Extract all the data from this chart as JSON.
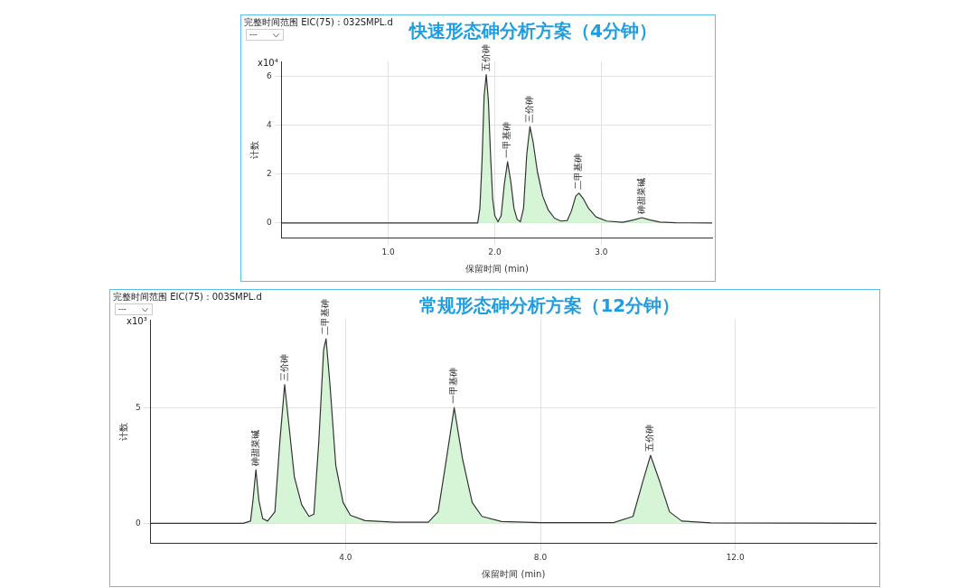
{
  "chart_data": [
    {
      "type": "area",
      "title": "快速形态砷分析方案（4分钟）",
      "xlabel": "保留时间 (min)",
      "ylabel": "计数",
      "annotations": [
        "完整时间范围 EIC(75) : 032SMPL.d",
        "---",
        "x10⁴",
        {
          "text": "五价砷",
          "x": 1.92,
          "y": 6.06
        },
        {
          "text": "一甲基砷",
          "x": 2.12,
          "y": 2.5
        },
        {
          "text": "三价砷",
          "x": 2.33,
          "y": 3.94
        },
        {
          "text": "二甲基砷",
          "x": 2.79,
          "y": 1.22
        },
        {
          "text": "砷甜菜碱",
          "x": 3.38,
          "y": 0.22
        }
      ],
      "series": [
        {
          "color": "#333333",
          "x": [
            0,
            1.0,
            1.84,
            1.86,
            1.88,
            1.9,
            1.92,
            1.94,
            1.96,
            1.98,
            2.0,
            2.03,
            2.06,
            2.09,
            2.12,
            2.15,
            2.18,
            2.21,
            2.24,
            2.27,
            2.3,
            2.33,
            2.36,
            2.4,
            2.45,
            2.5,
            2.56,
            2.62,
            2.68,
            2.72,
            2.76,
            2.79,
            2.83,
            2.88,
            2.95,
            3.05,
            3.2,
            3.3,
            3.38,
            3.46,
            3.55,
            3.7,
            4.04
          ],
          "values": [
            0,
            0,
            0,
            0.6,
            2.5,
            5.2,
            6.06,
            5.0,
            2.8,
            1.0,
            0.3,
            0.05,
            0.3,
            1.6,
            2.5,
            1.7,
            0.6,
            0.15,
            0.05,
            0.6,
            2.8,
            3.94,
            3.3,
            2.1,
            1.1,
            0.55,
            0.2,
            0.08,
            0.1,
            0.5,
            1.1,
            1.22,
            1.0,
            0.6,
            0.25,
            0.08,
            0.03,
            0.12,
            0.22,
            0.12,
            0.04,
            0.01,
            0
          ]
        }
      ],
      "xlim": [
        0,
        4.04
      ],
      "xticks": [
        {
          "value": 1,
          "label": "1.0"
        },
        {
          "value": 2,
          "label": "2.0"
        },
        {
          "value": 3,
          "label": "3.0"
        }
      ],
      "ylim": [
        -0.6,
        6.6
      ],
      "yticks": [
        0,
        2,
        4,
        6
      ],
      "grid": true,
      "legend": false
    },
    {
      "type": "area",
      "title": "常规形态砷分析方案（12分钟）",
      "xlabel": "保留时间 (min)",
      "ylabel": "计数",
      "annotations": [
        "完整时间范围 EIC(75) : 003SMPL.d",
        "---",
        "x10³",
        {
          "text": "砷甜菜碱",
          "x": 2.16,
          "y": 2.32
        },
        {
          "text": "三价砷",
          "x": 2.75,
          "y": 6.0
        },
        {
          "text": "二甲基砷",
          "x": 3.6,
          "y": 7.98
        },
        {
          "text": "一甲基砷",
          "x": 6.23,
          "y": 5.0
        },
        {
          "text": "五价砷",
          "x": 10.26,
          "y": 2.94
        }
      ],
      "series": [
        {
          "color": "#333333",
          "x": [
            0,
            1.9,
            2.05,
            2.1,
            2.16,
            2.22,
            2.3,
            2.4,
            2.55,
            2.65,
            2.75,
            2.85,
            2.95,
            3.1,
            3.25,
            3.35,
            3.45,
            3.55,
            3.6,
            3.68,
            3.8,
            3.95,
            4.1,
            4.4,
            5.0,
            5.7,
            5.9,
            6.05,
            6.23,
            6.4,
            6.6,
            6.8,
            7.2,
            8.0,
            9.5,
            9.9,
            10.1,
            10.26,
            10.45,
            10.65,
            10.9,
            11.5,
            14.9
          ],
          "values": [
            0,
            0,
            0.1,
            1.0,
            2.32,
            1.0,
            0.2,
            0.1,
            0.5,
            3.5,
            6.0,
            4.0,
            2.0,
            0.8,
            0.3,
            0.4,
            3.5,
            7.5,
            7.98,
            6.0,
            2.5,
            0.9,
            0.35,
            0.12,
            0.05,
            0.05,
            0.5,
            2.5,
            5.0,
            2.8,
            0.9,
            0.3,
            0.08,
            0.03,
            0.03,
            0.3,
            1.8,
            2.94,
            1.8,
            0.5,
            0.1,
            0.02,
            0
          ]
        }
      ],
      "xlim": [
        0,
        14.9
      ],
      "xticks": [
        {
          "value": 4,
          "label": "4.0"
        },
        {
          "value": 8,
          "label": "8.0"
        },
        {
          "value": 12,
          "label": "12.0"
        }
      ],
      "ylim": [
        -0.85,
        8.8
      ],
      "yticks": [
        0,
        5
      ],
      "grid": true,
      "legend": false
    }
  ]
}
